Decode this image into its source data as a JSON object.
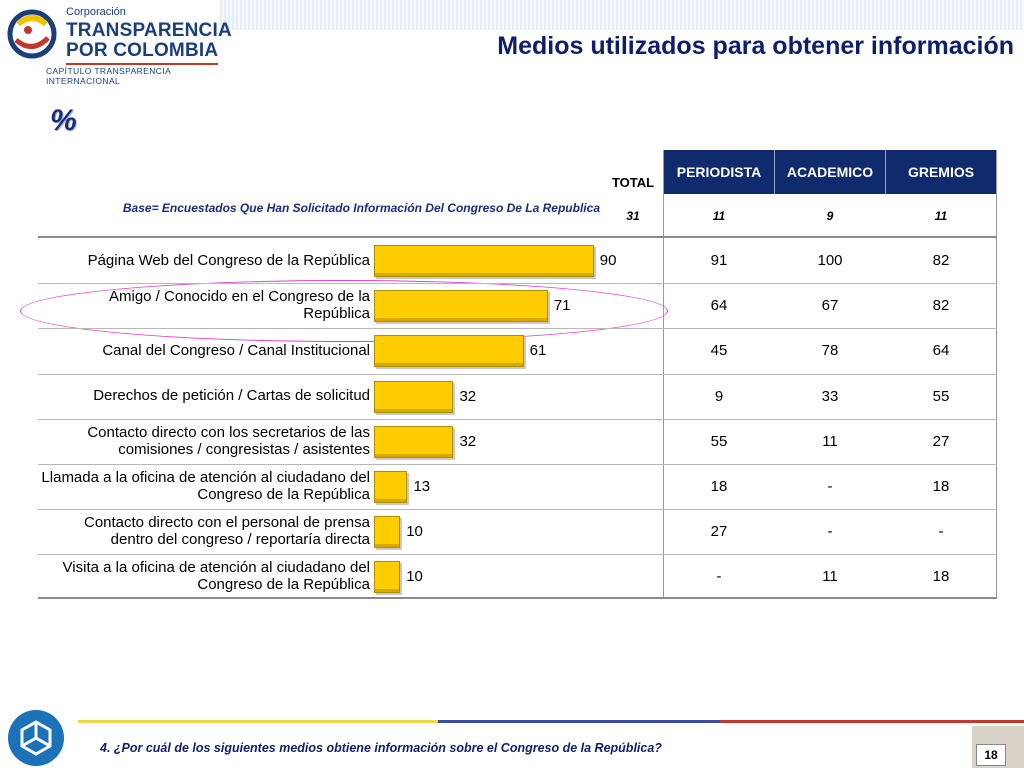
{
  "brand": {
    "corporacion": "Corporación",
    "line1": "TRANSPARENCIA",
    "line2": "POR COLOMBIA",
    "chapter": "CAPÍTULO TRANSPARENCIA INTERNACIONAL"
  },
  "title": "Medios utilizados para obtener información",
  "unit_mark": "%",
  "base_note": "Base= Encuestados Que  Han Solicitado Información Del Congreso De La Republica",
  "columns": {
    "total": "TOTAL",
    "segments": [
      "PERIODISTA",
      "ACADEMICO",
      "GREMIOS"
    ]
  },
  "base_n": {
    "total": "31",
    "segments": [
      "11",
      "9",
      "11"
    ]
  },
  "chart_data": {
    "type": "bar",
    "orientation": "horizontal",
    "xlim": [
      0,
      100
    ],
    "categories": [
      "Página Web del Congreso de la República",
      "Amigo / Conocido en el Congreso de la República",
      "Canal del Congreso / Canal Institucional",
      "Derechos de petición / Cartas de solicitud",
      "Contacto directo con los secretarios de las comisiones / congresistas / asistentes",
      "Llamada a la oficina de atención al ciudadano del Congreso de la República",
      "Contacto directo con el personal de prensa dentro del congreso / reportaría directa",
      "Visita a la oficina de atención al ciudadano del Congreso de la República"
    ],
    "values": [
      90,
      71,
      61,
      32,
      32,
      13,
      10,
      10
    ],
    "table": {
      "PERIODISTA": [
        "91",
        "64",
        "45",
        "9",
        "55",
        "18",
        "27",
        "-"
      ],
      "ACADEMICO": [
        "100",
        "67",
        "78",
        "33",
        "11",
        "-",
        "-",
        "11"
      ],
      "GREMIOS": [
        "82",
        "82",
        "64",
        "55",
        "27",
        "18",
        "-",
        "18"
      ]
    },
    "bar_color": "#ffcc00",
    "highlighted_row": 1
  },
  "footer": {
    "question": "4. ¿Por cuál de los siguientes medios obtiene información sobre el  Congreso de la República?",
    "page": "18"
  },
  "colors": {
    "header_bg": "#0f2b6e",
    "title": "#0d1f6b",
    "highlight": "#e040d0",
    "footer_line": [
      "#f2d64a",
      "#3a4f9a",
      "#c0392b"
    ]
  }
}
